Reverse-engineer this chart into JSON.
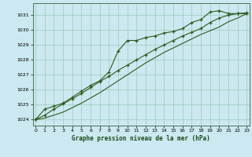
{
  "xlabel": "Graphe pression niveau de la mer (hPa)",
  "bg_color": "#cce8f0",
  "grid_color": "#99ccbb",
  "line_color": "#2d5a1e",
  "x_ticks": [
    0,
    1,
    2,
    3,
    4,
    5,
    6,
    7,
    8,
    9,
    10,
    11,
    12,
    13,
    14,
    15,
    16,
    17,
    18,
    19,
    20,
    21,
    22,
    23
  ],
  "y_ticks": [
    1024,
    1025,
    1026,
    1027,
    1028,
    1029,
    1030,
    1031
  ],
  "xlim": [
    -0.3,
    23.3
  ],
  "ylim": [
    1023.6,
    1031.8
  ],
  "series": [
    {
      "x": [
        0,
        1,
        2,
        3,
        4,
        5,
        6,
        7,
        8,
        9,
        10,
        11,
        12,
        13,
        14,
        15,
        16,
        17,
        18,
        19,
        20,
        21,
        22,
        23
      ],
      "y": [
        1024.0,
        1024.7,
        1024.9,
        1025.1,
        1025.5,
        1025.9,
        1026.3,
        1026.6,
        1027.2,
        1028.6,
        1029.3,
        1029.3,
        1029.5,
        1029.6,
        1029.8,
        1029.9,
        1030.1,
        1030.5,
        1030.7,
        1031.2,
        1031.3,
        1031.1,
        1031.1,
        1031.1
      ],
      "marker": "+"
    },
    {
      "x": [
        0,
        1,
        2,
        3,
        4,
        5,
        6,
        7,
        8,
        9,
        10,
        11,
        12,
        13,
        14,
        15,
        16,
        17,
        18,
        19,
        20,
        21,
        22,
        23
      ],
      "y": [
        1024.0,
        1024.3,
        1024.7,
        1025.05,
        1025.4,
        1025.75,
        1026.15,
        1026.55,
        1026.9,
        1027.3,
        1027.65,
        1028.0,
        1028.35,
        1028.7,
        1029.0,
        1029.3,
        1029.6,
        1029.85,
        1030.1,
        1030.5,
        1030.8,
        1031.0,
        1031.1,
        1031.15
      ],
      "marker": "+"
    },
    {
      "x": [
        0,
        1,
        2,
        3,
        4,
        5,
        6,
        7,
        8,
        9,
        10,
        11,
        12,
        13,
        14,
        15,
        16,
        17,
        18,
        19,
        20,
        21,
        22,
        23
      ],
      "y": [
        1024.0,
        1024.1,
        1024.3,
        1024.5,
        1024.8,
        1025.1,
        1025.45,
        1025.8,
        1026.2,
        1026.6,
        1027.0,
        1027.4,
        1027.8,
        1028.15,
        1028.5,
        1028.8,
        1029.1,
        1029.4,
        1029.7,
        1029.95,
        1030.2,
        1030.55,
        1030.8,
        1031.1
      ],
      "marker": null
    }
  ]
}
